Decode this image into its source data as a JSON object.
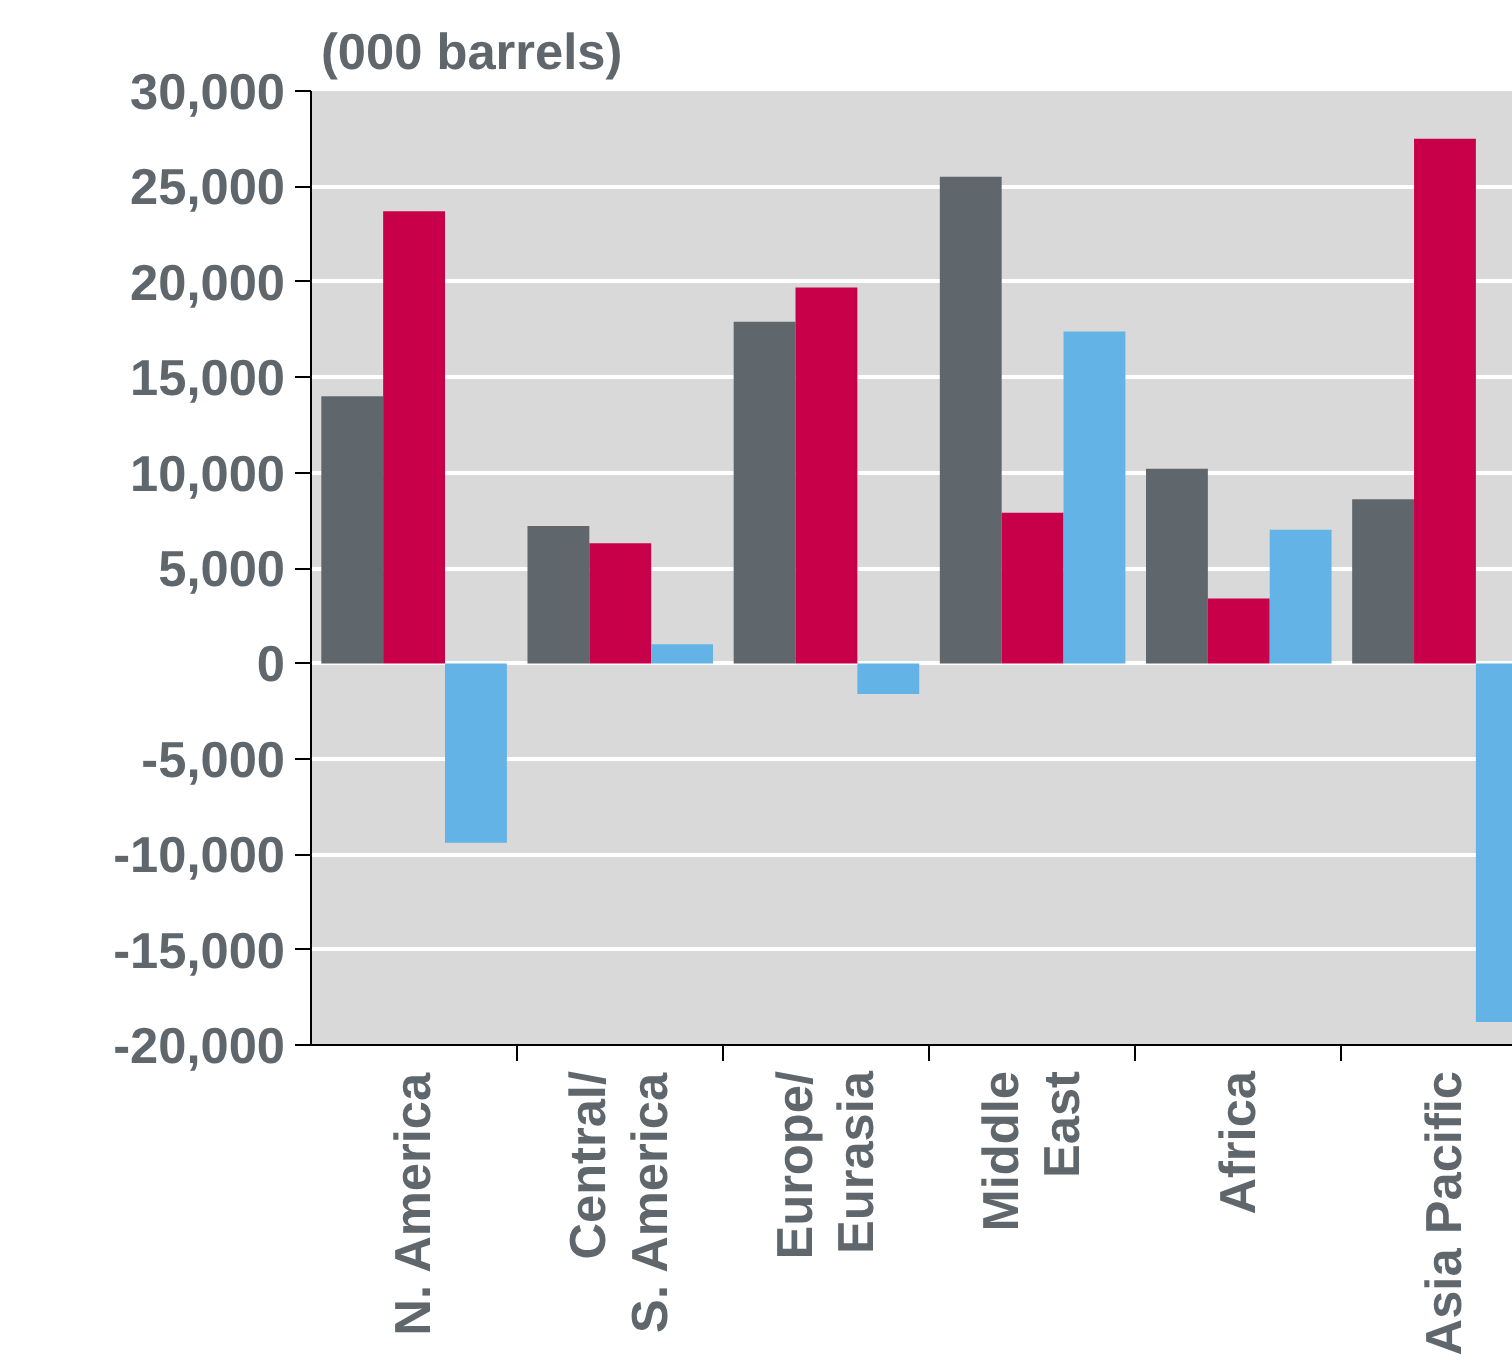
{
  "chart_data": {
    "type": "bar",
    "ylabel": "(000 barrels)",
    "categories": [
      "N. America",
      "Central/\nS. America",
      "Europe/\nEurasia",
      "Middle\nEast",
      "Africa",
      "Asia Pacific"
    ],
    "series": [
      {
        "color": "#5f676c",
        "values": [
          14000,
          7200,
          17900,
          25500,
          10200,
          8600
        ]
      },
      {
        "color": "#c8004a",
        "values": [
          23700,
          6300,
          19700,
          7900,
          3400,
          27500
        ]
      },
      {
        "color": "#63b3e6",
        "values": [
          -9400,
          1000,
          -1600,
          17400,
          7000,
          -18800
        ]
      }
    ],
    "ylim": [
      -20000,
      30000
    ],
    "yticks": [
      {
        "value": -20000,
        "label": "-20,000"
      },
      {
        "value": -15000,
        "label": "-15,000"
      },
      {
        "value": -10000,
        "label": "-10,000"
      },
      {
        "value": -5000,
        "label": "-5,000"
      },
      0,
      {
        "value": 5000,
        "label": "5,000"
      },
      {
        "value": 10000,
        "label": "10,000"
      },
      {
        "value": 15000,
        "label": "15,000"
      },
      {
        "value": 20000,
        "label": "20,000"
      },
      {
        "value": 25000,
        "label": "25,000"
      },
      {
        "value": 30000,
        "label": "30,000"
      }
    ],
    "grid": "y"
  }
}
